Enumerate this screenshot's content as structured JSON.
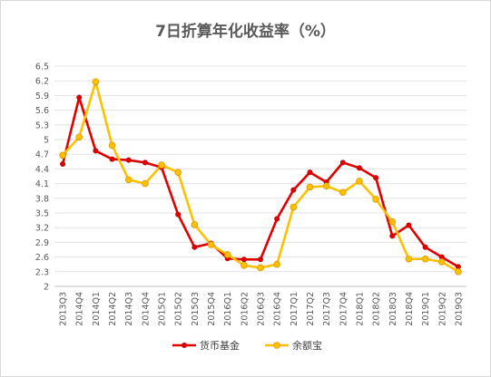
{
  "chart_data": {
    "type": "line",
    "title": "7日折算年化收益率（%）",
    "categories": [
      "2013Q3",
      "2014Q4",
      "2014Q1",
      "2014Q2",
      "2014Q3",
      "2014Q4",
      "2015Q1",
      "2015Q2",
      "2015Q3",
      "2015Q4",
      "2016Q1",
      "2016Q2",
      "2016Q3",
      "2016Q4",
      "2017Q1",
      "2017Q2",
      "2017Q3",
      "2017Q4",
      "2018Q1",
      "2018Q2",
      "2018Q3",
      "2018Q4",
      "2019Q1",
      "2019Q2",
      "2019Q3"
    ],
    "y_tick_labels": [
      "6.5",
      "6.2",
      "5.9",
      "5.6",
      "5.3",
      "5",
      "4.7",
      "4.4",
      "4.1",
      "3.8",
      "3.5",
      "3.2",
      "2.9",
      "2.6",
      "2.3",
      "2"
    ],
    "ylim": [
      2,
      6.5
    ],
    "grid": true,
    "legend_position": "bottom",
    "series": [
      {
        "name": "货币基金",
        "color": "#e00000",
        "values": [
          4.5,
          5.86,
          4.77,
          4.6,
          4.58,
          4.53,
          4.43,
          3.47,
          2.8,
          2.88,
          2.57,
          2.55,
          2.55,
          3.38,
          3.97,
          4.33,
          4.13,
          4.53,
          4.42,
          4.22,
          3.03,
          3.25,
          2.8,
          2.6,
          2.4
        ]
      },
      {
        "name": "余额宝",
        "color": "#ffc000",
        "values": [
          4.68,
          5.05,
          6.18,
          4.88,
          4.18,
          4.1,
          4.48,
          4.33,
          3.26,
          2.85,
          2.65,
          2.43,
          2.38,
          2.45,
          3.62,
          4.03,
          4.05,
          3.92,
          4.15,
          3.78,
          3.32,
          2.56,
          2.56,
          2.5,
          2.3
        ]
      }
    ]
  }
}
